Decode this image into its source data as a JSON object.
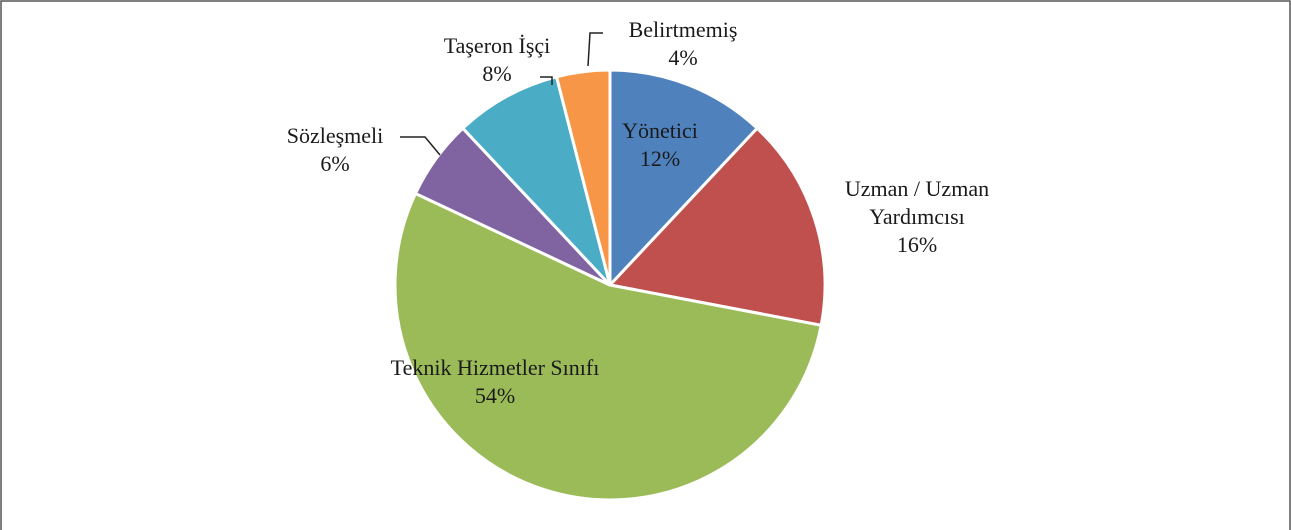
{
  "chart_data": {
    "type": "pie",
    "categories": [
      "Yönetici",
      "Uzman / Uzman Yardımcısı",
      "Teknik Hizmetler Sınıfı",
      "Sözleşmeli",
      "Taşeron İşçi",
      "Belirtmemiş"
    ],
    "values": [
      12,
      16,
      54,
      6,
      8,
      4
    ],
    "value_labels": [
      "12%",
      "16%",
      "54%",
      "6%",
      "8%",
      "4%"
    ],
    "colors": [
      "#4f81bd",
      "#c0504d",
      "#9bbb59",
      "#8064a2",
      "#4bacc6",
      "#f79646"
    ]
  }
}
